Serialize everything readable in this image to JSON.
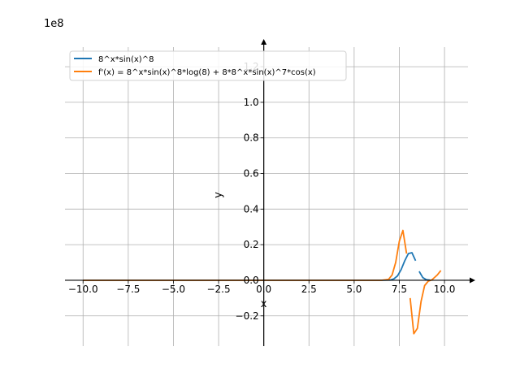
{
  "chart_data": {
    "type": "line",
    "scale_label": "1e8",
    "xlabel": "x",
    "ylabel": "y",
    "xlim": [
      -11,
      11.3
    ],
    "ylim": [
      -0.37,
      1.31
    ],
    "y_scale_multiplier": 100000000,
    "x_ticks": [
      -10,
      -7.5,
      -5,
      -2.5,
      0,
      2.5,
      5,
      7.5,
      10
    ],
    "x_tick_labels": [
      "−10.0",
      "−7.5",
      "−5.0",
      "−2.5",
      "0.0",
      "2.5",
      "5.0",
      "7.5",
      "10.0"
    ],
    "y_ticks": [
      -0.2,
      0,
      0.2,
      0.4,
      0.6,
      0.8,
      1.0,
      1.2
    ],
    "y_tick_labels": [
      "−0.2",
      "0.0",
      "0.2",
      "0.4",
      "0.6",
      "0.8",
      "1.0",
      "1.2"
    ],
    "grid": true,
    "legend_position": "top-left",
    "series": [
      {
        "name": "8^x*sin(x)^8",
        "color": "#1f77b4",
        "segments": [
          [
            [
              -10,
              0
            ],
            [
              0,
              0
            ],
            [
              6.5,
              0
            ],
            [
              7.0,
              0.001
            ],
            [
              7.2,
              0.008
            ],
            [
              7.4,
              0.025
            ],
            [
              7.6,
              0.06
            ],
            [
              7.8,
              0.11
            ],
            [
              8.0,
              0.15
            ],
            [
              8.2,
              0.155
            ],
            [
              8.4,
              0.11
            ]
          ],
          [
            [
              8.6,
              0.05
            ],
            [
              8.8,
              0.015
            ],
            [
              9.0,
              0.003
            ],
            [
              9.2,
              0.0005
            ]
          ]
        ]
      },
      {
        "name": "f'(x) = 8^x*sin(x)^8*log(8) + 8*8^x*sin(x)^7*cos(x)",
        "color": "#ff7f0e",
        "segments": [
          [
            [
              -10,
              0
            ],
            [
              0,
              0
            ],
            [
              6.5,
              0
            ],
            [
              6.9,
              0.005
            ],
            [
              7.1,
              0.03
            ],
            [
              7.3,
              0.1
            ],
            [
              7.5,
              0.22
            ],
            [
              7.7,
              0.28
            ],
            [
              7.9,
              0.15
            ]
          ],
          [
            [
              8.1,
              -0.1
            ],
            [
              8.3,
              -0.3
            ],
            [
              8.5,
              -0.27
            ],
            [
              8.7,
              -0.12
            ],
            [
              8.9,
              -0.03
            ],
            [
              9.1,
              -0.005
            ],
            [
              9.3,
              0.002
            ],
            [
              9.6,
              0.03
            ],
            [
              9.8,
              0.055
            ]
          ]
        ]
      }
    ]
  }
}
